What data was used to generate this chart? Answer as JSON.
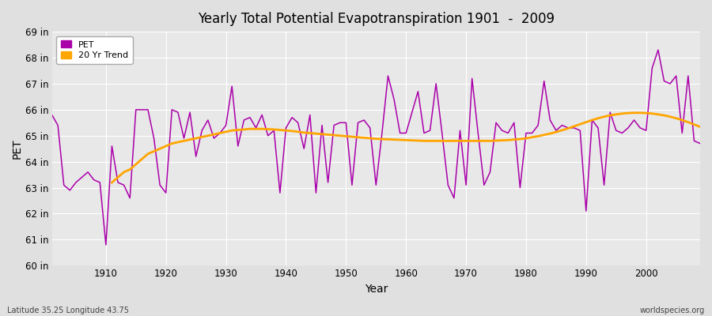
{
  "title": "Yearly Total Potential Evapotranspiration 1901  -  2009",
  "xlabel": "Year",
  "ylabel": "PET",
  "xlim": [
    1901,
    2009
  ],
  "ylim": [
    60,
    69
  ],
  "yticks": [
    60,
    61,
    62,
    63,
    64,
    65,
    66,
    67,
    68,
    69
  ],
  "ytick_labels": [
    "60 in",
    "61 in",
    "62 in",
    "63 in",
    "64 in",
    "65 in",
    "66 in",
    "67 in",
    "68 in",
    "69 in"
  ],
  "pet_color": "#aa00aa",
  "trend_color": "#FFA500",
  "bg_color": "#e0e0e0",
  "plot_bg_color": "#e8e8e8",
  "grid_color": "#ffffff",
  "footnote_left": "Latitude 35.25 Longitude 43.75",
  "footnote_right": "worldspecies.org",
  "legend_pet": "PET",
  "legend_trend": "20 Yr Trend",
  "years": [
    1901,
    1902,
    1903,
    1904,
    1905,
    1906,
    1907,
    1908,
    1909,
    1910,
    1911,
    1912,
    1913,
    1914,
    1915,
    1916,
    1917,
    1918,
    1919,
    1920,
    1921,
    1922,
    1923,
    1924,
    1925,
    1926,
    1927,
    1928,
    1929,
    1930,
    1931,
    1932,
    1933,
    1934,
    1935,
    1936,
    1937,
    1938,
    1939,
    1940,
    1941,
    1942,
    1943,
    1944,
    1945,
    1946,
    1947,
    1948,
    1949,
    1950,
    1951,
    1952,
    1953,
    1954,
    1955,
    1956,
    1957,
    1958,
    1959,
    1960,
    1961,
    1962,
    1963,
    1964,
    1965,
    1966,
    1967,
    1968,
    1969,
    1970,
    1971,
    1972,
    1973,
    1974,
    1975,
    1976,
    1977,
    1978,
    1979,
    1980,
    1981,
    1982,
    1983,
    1984,
    1985,
    1986,
    1987,
    1988,
    1989,
    1990,
    1991,
    1992,
    1993,
    1994,
    1995,
    1996,
    1997,
    1998,
    1999,
    2000,
    2001,
    2002,
    2003,
    2004,
    2005,
    2006,
    2007,
    2008,
    2009
  ],
  "pet_values": [
    65.8,
    65.4,
    63.1,
    62.9,
    63.2,
    63.4,
    63.6,
    63.3,
    63.2,
    60.8,
    64.6,
    63.2,
    63.1,
    62.6,
    66.0,
    66.0,
    66.0,
    64.9,
    63.1,
    62.8,
    66.0,
    65.9,
    64.9,
    65.9,
    64.2,
    65.2,
    65.6,
    64.9,
    65.1,
    65.4,
    66.9,
    64.6,
    65.6,
    65.7,
    65.3,
    65.8,
    65.0,
    65.2,
    62.8,
    65.3,
    65.7,
    65.5,
    64.5,
    65.8,
    62.8,
    65.4,
    63.2,
    65.4,
    65.5,
    65.5,
    63.1,
    65.5,
    65.6,
    65.3,
    63.1,
    65.1,
    67.3,
    66.4,
    65.1,
    65.1,
    65.9,
    66.7,
    65.1,
    65.2,
    67.0,
    65.1,
    63.1,
    62.6,
    65.2,
    63.1,
    67.2,
    65.1,
    63.1,
    63.6,
    65.5,
    65.2,
    65.1,
    65.5,
    63.0,
    65.1,
    65.1,
    65.4,
    67.1,
    65.6,
    65.2,
    65.4,
    65.3,
    65.3,
    65.2,
    62.1,
    65.6,
    65.3,
    63.1,
    65.9,
    65.2,
    65.1,
    65.3,
    65.6,
    65.3,
    65.2,
    67.6,
    68.3,
    67.1,
    67.0,
    67.3,
    65.1,
    67.3,
    64.8,
    64.7
  ],
  "trend_years": [
    1911,
    1912,
    1913,
    1914,
    1915,
    1916,
    1917,
    1918,
    1919,
    1920,
    1921,
    1922,
    1923,
    1924,
    1925,
    1926,
    1927,
    1928,
    1929,
    1930,
    1931,
    1932,
    1933,
    1934,
    1935,
    1936,
    1937,
    1938,
    1939,
    1940,
    1941,
    1942,
    1943,
    1944,
    1945,
    1946,
    1947,
    1948,
    1949,
    1950,
    1951,
    1952,
    1953,
    1954,
    1955,
    1956,
    1957,
    1958,
    1959,
    1960,
    1961,
    1962,
    1963,
    1964,
    1965,
    1966,
    1967,
    1968,
    1969,
    1970,
    1971,
    1972,
    1973,
    1974,
    1975,
    1976,
    1977,
    1978,
    1979,
    1980,
    1981,
    1982,
    1983,
    1984,
    1985,
    1986,
    1987,
    1988,
    1989,
    1990,
    1991,
    1992,
    1993,
    1994,
    1995,
    1996,
    1997,
    1998,
    1999,
    2000,
    2001,
    2002,
    2003,
    2004,
    2005,
    2006,
    2007,
    2008,
    2009
  ],
  "trend_values": [
    63.2,
    63.4,
    63.6,
    63.7,
    63.9,
    64.1,
    64.3,
    64.4,
    64.5,
    64.6,
    64.7,
    64.75,
    64.8,
    64.85,
    64.9,
    64.95,
    65.0,
    65.05,
    65.1,
    65.15,
    65.2,
    65.22,
    65.24,
    65.26,
    65.26,
    65.26,
    65.25,
    65.24,
    65.22,
    65.2,
    65.18,
    65.15,
    65.12,
    65.1,
    65.08,
    65.06,
    65.04,
    65.02,
    65.0,
    64.98,
    64.96,
    64.94,
    64.92,
    64.9,
    64.88,
    64.87,
    64.86,
    64.85,
    64.84,
    64.83,
    64.82,
    64.81,
    64.8,
    64.8,
    64.8,
    64.8,
    64.8,
    64.8,
    64.8,
    64.8,
    64.8,
    64.8,
    64.8,
    64.8,
    64.81,
    64.82,
    64.83,
    64.85,
    64.87,
    64.9,
    64.94,
    64.98,
    65.03,
    65.08,
    65.14,
    65.21,
    65.28,
    65.36,
    65.44,
    65.52,
    65.6,
    65.67,
    65.73,
    65.78,
    65.82,
    65.85,
    65.87,
    65.88,
    65.88,
    65.87,
    65.85,
    65.82,
    65.78,
    65.73,
    65.67,
    65.6,
    65.52,
    65.43,
    65.34
  ]
}
